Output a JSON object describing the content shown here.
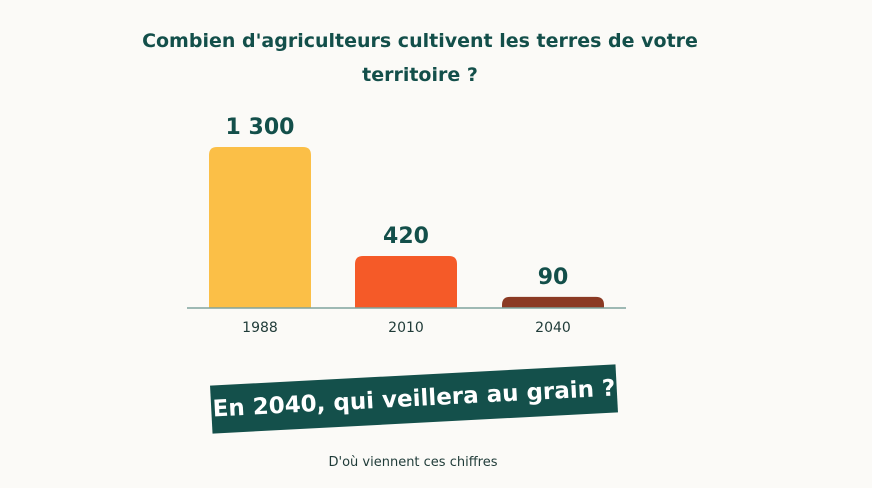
{
  "chart_data": {
    "type": "bar",
    "title": "Combien d'agriculteurs cultivent les terres de votre territoire ?",
    "categories": [
      "1988",
      "2010",
      "2040"
    ],
    "values": [
      1300,
      420,
      90
    ],
    "value_labels": [
      "1 300",
      "420",
      "90"
    ],
    "colors": [
      "#fbbf47",
      "#f55a28",
      "#8b3a24"
    ],
    "xlabel": "",
    "ylabel": "",
    "ylim": [
      0,
      1300
    ],
    "grid": false
  },
  "banner": "En 2040, qui veillera au grain ?",
  "source_link": "D'où viennent ces chiffres"
}
